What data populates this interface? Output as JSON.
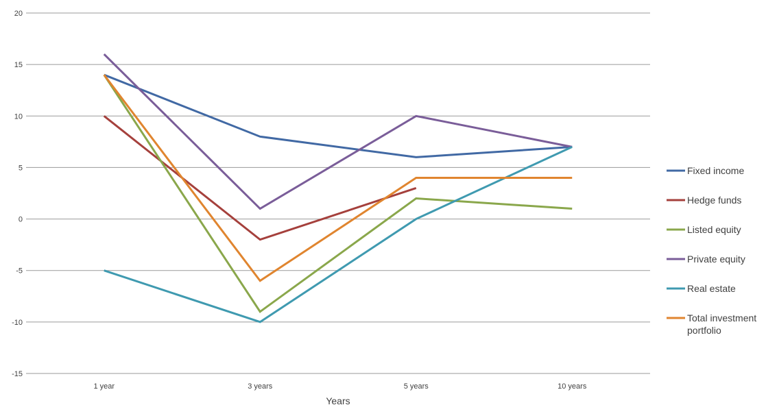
{
  "chart_data": {
    "type": "line",
    "title": "",
    "xlabel": "Years",
    "ylabel": "",
    "categories": [
      "1 year",
      "3 years",
      "5 years",
      "10 years"
    ],
    "ylim": [
      -15,
      20
    ],
    "yticks": [
      20,
      15,
      10,
      5,
      0,
      -5,
      -10,
      -15
    ],
    "ytick_labels": [
      "20",
      "15",
      "10",
      "5",
      "0",
      "-5",
      "-10",
      "-15"
    ],
    "grid": "horizontal",
    "legend_position": "right",
    "series": [
      {
        "name": "Fixed income",
        "color": "#4169a4",
        "values": [
          14,
          8,
          6,
          7
        ]
      },
      {
        "name": "Hedge funds",
        "color": "#a5403c",
        "values": [
          10,
          -2,
          3,
          null
        ]
      },
      {
        "name": "Listed equity",
        "color": "#8aa74b",
        "values": [
          14,
          -9,
          2,
          1
        ]
      },
      {
        "name": "Private equity",
        "color": "#7a5d99",
        "values": [
          16,
          1,
          10,
          7
        ]
      },
      {
        "name": "Real estate",
        "color": "#3f9ab0",
        "values": [
          -5,
          -10,
          0,
          7
        ]
      },
      {
        "name": "Total investment portfolio",
        "name_lines": [
          "Total investment",
          "portfolio"
        ],
        "color": "#e0852f",
        "values": [
          14,
          -6,
          4,
          4
        ]
      }
    ]
  }
}
